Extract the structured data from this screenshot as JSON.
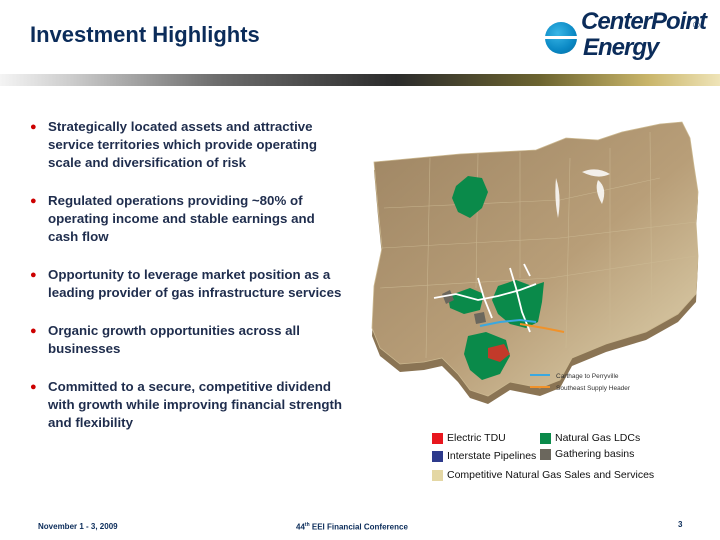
{
  "slide": {
    "title": "Investment Highlights",
    "page_number": "3"
  },
  "logo": {
    "line1": "CenterPoint",
    "line2": "Energy",
    "mark": "®"
  },
  "bullets": [
    "Strategically located assets and attractive service territories which provide operating scale and diversification of risk",
    "Regulated operations providing ~80% of operating income and stable earnings and cash flow",
    "Opportunity to leverage market position as a leading provider of gas infrastructure services",
    "Organic growth opportunities across all businesses",
    "Committed to a secure, competitive dividend with growth while improving financial strength and flexibility"
  ],
  "map": {
    "pipeline_legend": [
      {
        "label": "Carthage to Perryville",
        "color": "#3aa8e0"
      },
      {
        "label": "Southeast Supply Header",
        "color": "#f0922a"
      }
    ]
  },
  "legend": {
    "electric_tdu": {
      "label": "Electric TDU",
      "color": "#e8161e"
    },
    "natural_gas_ldcs": {
      "label": "Natural Gas LDCs",
      "color": "#0a8a4a"
    },
    "interstate_pipelines": {
      "label": "Interstate Pipelines",
      "color": "#2d3a8c"
    },
    "gathering_basins": {
      "label": "Gathering basins",
      "color": "#6b675d"
    },
    "competitive_sales": {
      "label": "Competitive Natural Gas Sales and Services",
      "color": "#e4d7a4"
    }
  },
  "footer": {
    "date": "November 1 - 3, 2009",
    "conference_prefix": "44",
    "conference_sup": "th",
    "conference_suffix": " EEI Financial Conference"
  }
}
